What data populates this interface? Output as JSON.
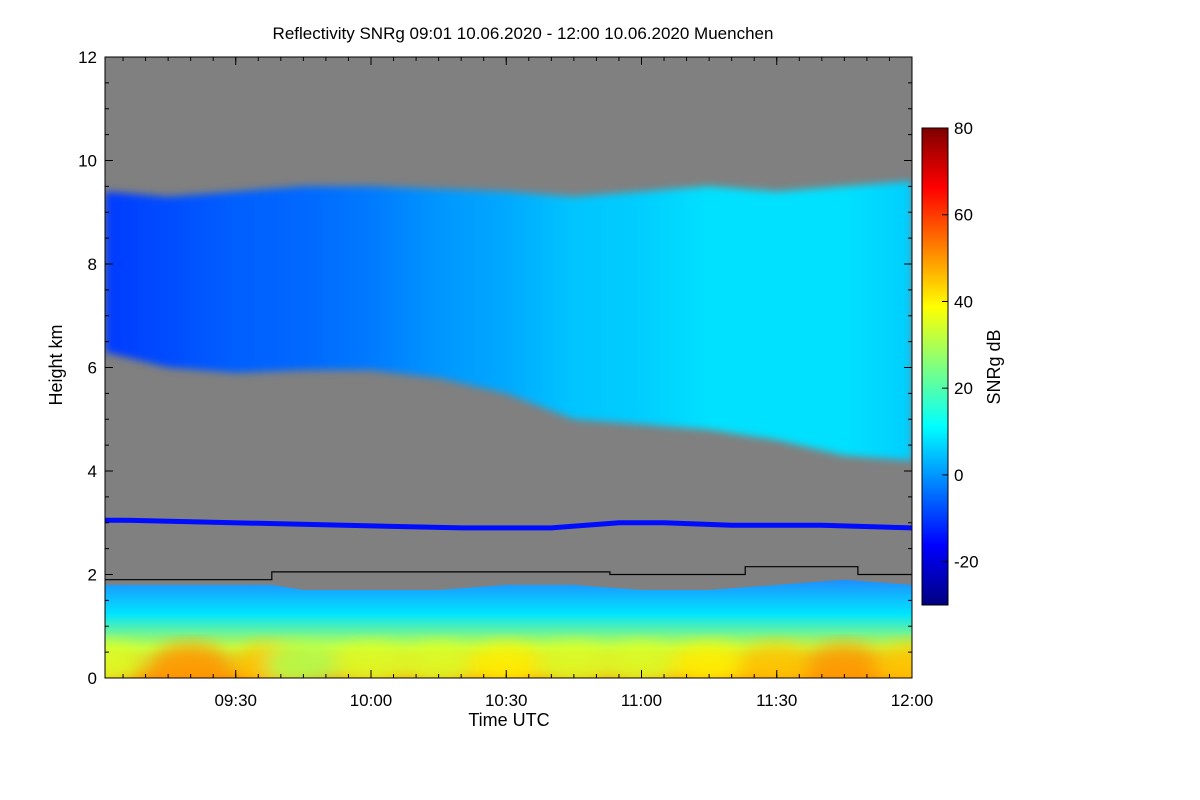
{
  "chart_data": {
    "type": "heatmap",
    "title": "Reflectivity SNRg   09:01 10.06.2020 - 12:00 10.06.2020 Muenchen",
    "xlabel": "Time UTC",
    "ylabel": "Height km",
    "colorbar_label": "SNRg dB",
    "x_range_min": [
      541,
      720
    ],
    "x_ticks_min": [
      570,
      600,
      630,
      660,
      690,
      720
    ],
    "x_tick_labels": [
      "09:30",
      "10:00",
      "10:30",
      "11:00",
      "11:30",
      "12:00"
    ],
    "y_range_km": [
      0,
      12
    ],
    "y_ticks": [
      0,
      2,
      4,
      6,
      8,
      10,
      12
    ],
    "y_tick_labels": [
      "0",
      "2",
      "4",
      "6",
      "8",
      "10",
      "12"
    ],
    "colorbar_range_db": [
      -30,
      80
    ],
    "colorbar_ticks": [
      -20,
      0,
      20,
      40,
      60,
      80
    ],
    "colorbar_tick_labels": [
      "-20",
      "0",
      "20",
      "40",
      "60",
      "80"
    ],
    "colormap": [
      "#00007f",
      "#0000ff",
      "#007fff",
      "#00ffff",
      "#7fff7f",
      "#ffff00",
      "#ff7f00",
      "#ff0000",
      "#7f0000"
    ],
    "background_color": "#808080",
    "cirrus_layer": {
      "time_min": [
        541,
        555,
        570,
        585,
        600,
        615,
        630,
        645,
        660,
        675,
        690,
        705,
        720
      ],
      "base_km": [
        6.3,
        6.0,
        5.9,
        5.95,
        5.95,
        5.8,
        5.5,
        5.0,
        4.9,
        4.8,
        4.6,
        4.3,
        4.2
      ],
      "top_km": [
        9.4,
        9.3,
        9.4,
        9.5,
        9.5,
        9.45,
        9.4,
        9.3,
        9.4,
        9.5,
        9.4,
        9.5,
        9.6
      ],
      "snr_db": [
        -10,
        -8,
        -6,
        -5,
        -3,
        0,
        2,
        5,
        6,
        8,
        8,
        8,
        6
      ]
    },
    "mid_layer": {
      "time_min": [
        541,
        545,
        620,
        640,
        655,
        665,
        680,
        700,
        720
      ],
      "height_km": [
        3.05,
        3.05,
        2.9,
        2.9,
        3.0,
        3.0,
        2.95,
        2.95,
        2.9
      ],
      "snr_db": [
        -15,
        -15,
        -18,
        -18,
        -10,
        -12,
        -15,
        -15,
        -15
      ]
    },
    "boundary_layer": {
      "time_min": [
        541,
        560,
        578,
        585,
        600,
        615,
        630,
        645,
        660,
        675,
        690,
        705,
        720
      ],
      "top_km": [
        1.8,
        1.8,
        1.8,
        1.7,
        1.7,
        1.7,
        1.8,
        1.8,
        1.7,
        1.7,
        1.8,
        1.9,
        1.8
      ],
      "surface_snr_db": [
        35,
        50,
        45,
        30,
        35,
        35,
        40,
        35,
        35,
        40,
        45,
        50,
        45
      ]
    },
    "reference_line": {
      "time_min": [
        541,
        578,
        578,
        653,
        653,
        683,
        683,
        708,
        708,
        720
      ],
      "height_km": [
        1.9,
        1.9,
        2.05,
        2.05,
        2.0,
        2.0,
        2.15,
        2.15,
        2.0,
        2.0
      ]
    }
  }
}
